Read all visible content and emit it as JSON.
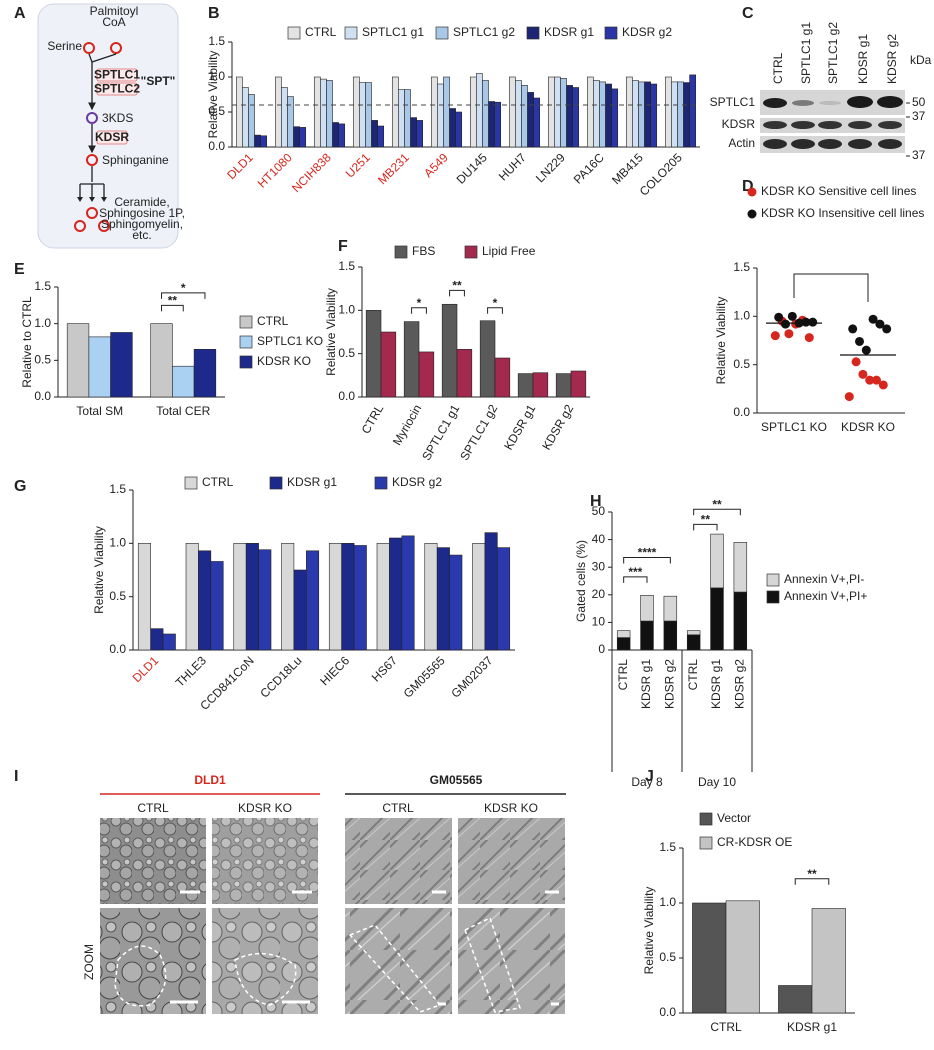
{
  "pathway": {
    "label": "A",
    "palmitoyl": [
      "Palmitoyl",
      "CoA"
    ],
    "serine": "Serine",
    "enzymes": [
      "SPTLC1",
      "SPTLC2"
    ],
    "complex": "\"SPT\"",
    "intermediate": "3KDS",
    "reductase": "KDSR",
    "sphinganine": "Sphinganine",
    "products": [
      "Ceramide,",
      "Sphingosine 1P,",
      "Sphingomyelin,",
      "etc."
    ]
  },
  "blot": {
    "label": "C",
    "lanes": [
      "CTRL",
      "SPTLC1 g1",
      "SPTLC1 g2",
      "KDSR g1",
      "KDSR g2"
    ],
    "unit": "kDa",
    "rows": [
      "SPTLC1",
      "KDSR",
      "Actin"
    ],
    "markers": [
      "50",
      "37",
      "37"
    ]
  },
  "images": {
    "label": "I",
    "groups": [
      {
        "title": "DLD1",
        "conditions": [
          "CTRL",
          "KDSR KO"
        ]
      },
      {
        "title": "GM05565",
        "conditions": [
          "CTRL",
          "KDSR KO"
        ]
      }
    ],
    "row_label": "ZOOM"
  },
  "chart_data": [
    {
      "label": "B",
      "type": "bar",
      "ylabel": "Relative Viability",
      "categories": [
        "DLD1",
        "HT1080",
        "NCIH838",
        "U251",
        "MB231",
        "A549",
        "DU145",
        "HUH7",
        "LN229",
        "PA16C",
        "MB415",
        "COLO205"
      ],
      "category_colors": [
        "#d7261e",
        "#d7261e",
        "#d7261e",
        "#d7261e",
        "#d7261e",
        "#d7261e",
        "#222222",
        "#222222",
        "#222222",
        "#222222",
        "#222222",
        "#222222"
      ],
      "series": [
        {
          "name": "CTRL",
          "color": "#e3e3e3",
          "values": [
            1,
            1,
            1,
            1,
            1,
            1,
            1,
            1,
            1,
            1,
            1,
            1
          ]
        },
        {
          "name": "SPTLC1 g1",
          "color": "#cfe0f2",
          "values": [
            0.85,
            0.85,
            0.97,
            0.92,
            0.82,
            0.9,
            1.05,
            0.95,
            1.0,
            0.95,
            0.95,
            0.93
          ]
        },
        {
          "name": "SPTLC1 g2",
          "color": "#a9c8e8",
          "values": [
            0.75,
            0.72,
            0.95,
            0.92,
            0.82,
            1.0,
            0.95,
            0.88,
            0.98,
            0.93,
            0.93,
            0.93
          ]
        },
        {
          "name": "KDSR g1",
          "color": "#1d2675",
          "values": [
            0.17,
            0.29,
            0.35,
            0.38,
            0.42,
            0.55,
            0.65,
            0.78,
            0.88,
            0.9,
            0.93,
            0.92
          ]
        },
        {
          "name": "KDSR g2",
          "color": "#2a36a6",
          "values": [
            0.16,
            0.28,
            0.33,
            0.3,
            0.38,
            0.5,
            0.64,
            0.7,
            0.85,
            0.83,
            0.9,
            1.03
          ]
        }
      ],
      "ylim": [
        0,
        1.5
      ],
      "yticks": [
        {
          "value": 0,
          "label": "0.0"
        },
        0.5,
        {
          "value": 1,
          "label": "1.0"
        },
        1.5
      ],
      "reference_line": 0.6
    },
    {
      "label": "D",
      "type": "strip",
      "ylabel": "Relative Viability",
      "categories": [
        "SPTLC1 KO",
        "KDSR KO"
      ],
      "series": [
        {
          "name": "KDSR KO Sensitive cell lines",
          "color": "#d7261e",
          "values": [
            [
              0.8,
              0.78,
              0.96,
              0.92,
              0.82,
              0.95
            ],
            [
              0.17,
              0.29,
              0.34,
              0.34,
              0.4,
              0.53
            ]
          ]
        },
        {
          "name": "KDSR KO Insensitive cell lines",
          "color": "#111111",
          "values": [
            [
              1.0,
              0.92,
              0.99,
              0.94,
              0.94,
              0.93
            ],
            [
              0.65,
              0.74,
              0.87,
              0.87,
              0.92,
              0.97
            ]
          ]
        }
      ],
      "means": [
        0.93,
        0.6
      ],
      "ylim": [
        0,
        1.5
      ],
      "yticks": [
        {
          "value": 0,
          "label": "0.0"
        },
        0.5,
        {
          "value": 1,
          "label": "1.0"
        },
        1.5
      ]
    },
    {
      "label": "E",
      "type": "bar",
      "ylabel": "Relative to CTRL",
      "categories": [
        "Total SM",
        "Total CER"
      ],
      "series": [
        {
          "name": "CTRL",
          "color": "#c8c8c8",
          "values": [
            1.0,
            1.0
          ]
        },
        {
          "name": "SPTLC1 KO",
          "color": "#aad0f2",
          "values": [
            0.82,
            0.42
          ]
        },
        {
          "name": "KDSR KO",
          "color": "#1d2a8c",
          "values": [
            0.88,
            0.65
          ]
        }
      ],
      "ylim": [
        0,
        1.5
      ],
      "yticks": [
        {
          "value": 0,
          "label": "0.0"
        },
        0.5,
        {
          "value": 1,
          "label": "1.0"
        },
        1.5
      ],
      "significance": [
        "**",
        "*"
      ]
    },
    {
      "label": "F",
      "type": "bar",
      "ylabel": "Relative Viability",
      "categories": [
        "CTRL",
        "Myriocin",
        "SPTLC1 g1",
        "SPTLC1 g2",
        "KDSR g1",
        "KDSR g2"
      ],
      "series": [
        {
          "name": "FBS",
          "color": "#5a5a5a",
          "values": [
            1.0,
            0.87,
            1.07,
            0.88,
            0.27,
            0.27
          ]
        },
        {
          "name": "Lipid Free",
          "color": "#a3294f",
          "values": [
            0.75,
            0.52,
            0.55,
            0.45,
            0.28,
            0.3
          ]
        }
      ],
      "ylim": [
        0,
        1.5
      ],
      "yticks": [
        {
          "value": 0,
          "label": "0.0"
        },
        0.5,
        {
          "value": 1,
          "label": "1.0"
        },
        1.5
      ],
      "significance": [
        "*",
        "**",
        "*"
      ]
    },
    {
      "label": "G",
      "type": "bar",
      "ylabel": "Relative Viability",
      "categories": [
        "DLD1",
        "THLE3",
        "CCD841CoN",
        "CCD18Lu",
        "HIEC6",
        "HS67",
        "GM05565",
        "GM02037"
      ],
      "category_colors": [
        "#d7261e",
        "#222222",
        "#222222",
        "#222222",
        "#222222",
        "#222222",
        "#222222",
        "#222222"
      ],
      "series": [
        {
          "name": "CTRL",
          "color": "#d8d8d8",
          "values": [
            1,
            1,
            1,
            1,
            1,
            1,
            1,
            1
          ]
        },
        {
          "name": "KDSR g1",
          "color": "#1d2a8c",
          "values": [
            0.2,
            0.93,
            1.0,
            0.75,
            1.0,
            1.05,
            0.96,
            1.1
          ]
        },
        {
          "name": "KDSR g2",
          "color": "#2a3aac",
          "values": [
            0.15,
            0.83,
            0.94,
            0.93,
            0.98,
            1.07,
            0.89,
            0.96
          ]
        }
      ],
      "ylim": [
        0,
        1.5
      ],
      "yticks": [
        {
          "value": 0,
          "label": "0.0"
        },
        0.5,
        {
          "value": 1,
          "label": "1.0"
        },
        1.5
      ]
    },
    {
      "label": "H",
      "type": "stacked_bar",
      "ylabel": "Gated cells (%)",
      "categories": [
        "CTRL",
        "KDSR g1",
        "KDSR g2",
        "CTRL",
        "KDSR g1",
        "KDSR g2"
      ],
      "groups": [
        "Day 8",
        "Day 10"
      ],
      "series": [
        {
          "name": "Annexin V+,PI+",
          "color": "#111111",
          "values": [
            4.5,
            10.5,
            10.5,
            5.5,
            22.5,
            21
          ]
        },
        {
          "name": "Annexin V+,PI-",
          "color": "#d6d6d6",
          "values": [
            2.5,
            9.3,
            9,
            1.5,
            19.5,
            18
          ]
        }
      ],
      "ylim": [
        0,
        50
      ],
      "yticks": [
        0,
        10,
        20,
        30,
        40,
        50
      ],
      "significance": [
        "***",
        "****",
        "**",
        "**"
      ]
    },
    {
      "label": "J",
      "type": "bar",
      "ylabel": "Relative Viability",
      "categories": [
        "CTRL",
        "KDSR g1"
      ],
      "series": [
        {
          "name": "Vector",
          "color": "#555555",
          "values": [
            1.0,
            0.25
          ]
        },
        {
          "name": "CR-KDSR OE",
          "color": "#c4c4c4",
          "values": [
            1.02,
            0.95
          ]
        }
      ],
      "ylim": [
        0,
        1.5
      ],
      "yticks": [
        {
          "value": 0,
          "label": "0.0"
        },
        0.5,
        {
          "value": 1,
          "label": "1.0"
        },
        1.5
      ],
      "significance": [
        "**"
      ]
    }
  ]
}
